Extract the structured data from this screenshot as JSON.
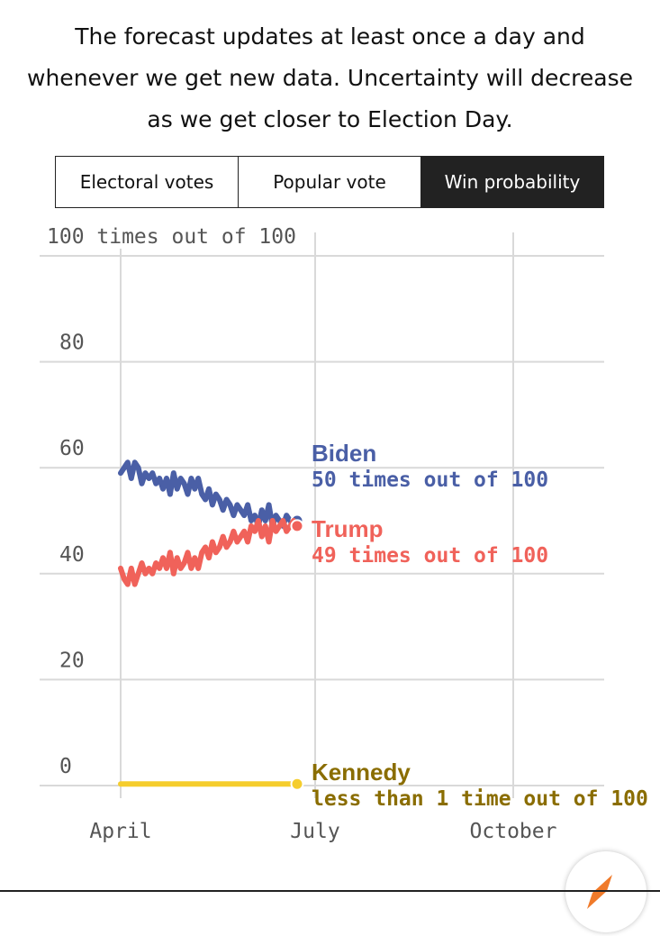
{
  "intro_text": "The forecast updates at least once a day and whenever we get new data. Uncertainty will decrease as we get closer to Election Day.",
  "tabs": [
    {
      "label": "Electoral votes",
      "active": false
    },
    {
      "label": "Popular vote",
      "active": false
    },
    {
      "label": "Win probability",
      "active": true
    }
  ],
  "colors": {
    "biden": "#4a5fa6",
    "trump": "#f0625a",
    "kennedy_line": "#f5cd2d",
    "kennedy_label": "#8a6d00",
    "grid": "#d9d9d9"
  },
  "chart_data": {
    "type": "line",
    "ylim": [
      0,
      100
    ],
    "y_ticks": [
      0,
      20,
      40,
      60,
      80,
      100
    ],
    "y_tick_labels": [
      "0",
      "20",
      "40",
      "60",
      "80",
      "100 times out of 100"
    ],
    "x_ticks": [
      "April",
      "July",
      "October"
    ],
    "series": [
      {
        "name": "Biden",
        "color": "#4a5fa6",
        "label": "50 times out of 100",
        "values": [
          59,
          60,
          61,
          58,
          61,
          60,
          57,
          59,
          58,
          59,
          57,
          58,
          56,
          58,
          55,
          59,
          56,
          58,
          57,
          55,
          58,
          56,
          58,
          55,
          54,
          56,
          53,
          55,
          54,
          52,
          54,
          53,
          51,
          53,
          52,
          51,
          53,
          50,
          51,
          49,
          52,
          50,
          53,
          49,
          51,
          50,
          49,
          51,
          50,
          49,
          50
        ]
      },
      {
        "name": "Trump",
        "color": "#f0625a",
        "label": "49 times out of 100",
        "values": [
          41,
          39,
          38,
          41,
          38,
          40,
          42,
          40,
          41,
          40,
          42,
          41,
          43,
          41,
          44,
          40,
          43,
          41,
          42,
          44,
          41,
          43,
          41,
          44,
          45,
          43,
          46,
          44,
          45,
          47,
          45,
          46,
          48,
          46,
          47,
          48,
          46,
          49,
          48,
          50,
          47,
          49,
          46,
          50,
          48,
          49,
          50,
          48,
          49,
          50,
          49
        ]
      },
      {
        "name": "Kennedy",
        "color": "#f5cd2d",
        "label": "less than 1 time out of 100",
        "values": [
          0.3,
          0.3,
          0.3,
          0.3,
          0.3,
          0.3,
          0.3,
          0.3,
          0.3,
          0.3,
          0.3
        ]
      }
    ]
  }
}
